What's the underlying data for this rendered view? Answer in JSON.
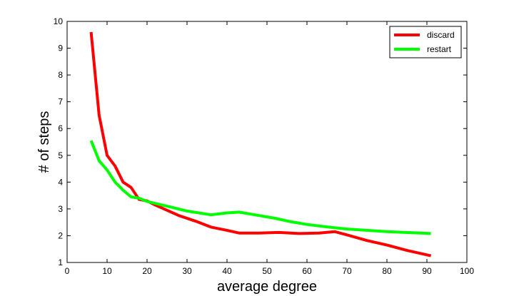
{
  "chart_data": {
    "type": "line",
    "xlabel": "average degree",
    "ylabel": "# of steps",
    "xlim": [
      0,
      100
    ],
    "ylim": [
      1,
      10
    ],
    "xticks": [
      "0",
      "10",
      "20",
      "30",
      "40",
      "50",
      "60",
      "70",
      "80",
      "90",
      "100"
    ],
    "yticks": [
      "1",
      "2",
      "3",
      "4",
      "5",
      "6",
      "7",
      "8",
      "9",
      "10"
    ],
    "grid": false,
    "legend_position": "top-right",
    "series": [
      {
        "name": "discard",
        "color": "#ff0000",
        "x": [
          6,
          8,
          10,
          12,
          14,
          16,
          18,
          20,
          22,
          25,
          28,
          32,
          36,
          40,
          43,
          48,
          53,
          58,
          63,
          67,
          70,
          75,
          80,
          85,
          91
        ],
        "y": [
          9.6,
          6.5,
          5.0,
          4.6,
          4.0,
          3.8,
          3.35,
          3.3,
          3.15,
          2.95,
          2.75,
          2.55,
          2.32,
          2.2,
          2.1,
          2.1,
          2.12,
          2.08,
          2.1,
          2.15,
          2.03,
          1.82,
          1.65,
          1.45,
          1.25
        ]
      },
      {
        "name": "restart",
        "color": "#00ff00",
        "x": [
          6,
          8,
          10,
          12,
          14,
          16,
          18,
          20,
          25,
          30,
          36,
          40,
          43,
          47,
          52,
          56,
          60,
          65,
          70,
          80,
          91
        ],
        "y": [
          5.55,
          4.8,
          4.45,
          4.0,
          3.7,
          3.45,
          3.4,
          3.28,
          3.1,
          2.92,
          2.78,
          2.85,
          2.88,
          2.78,
          2.65,
          2.52,
          2.42,
          2.33,
          2.25,
          2.15,
          2.08
        ]
      }
    ]
  }
}
